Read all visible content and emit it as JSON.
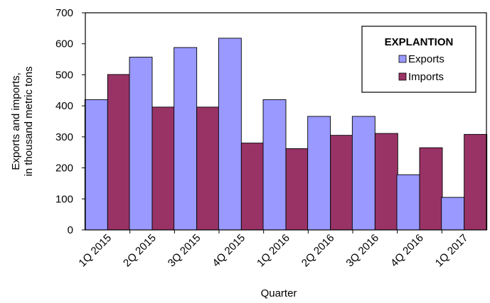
{
  "chart_data": {
    "type": "bar",
    "title": "",
    "xlabel": "Quarter",
    "ylabel_lines": [
      "Exports and imports,",
      "in thousand metric tons"
    ],
    "ylim": [
      0,
      700
    ],
    "yticks": [
      0,
      100,
      200,
      300,
      400,
      500,
      600,
      700
    ],
    "grid": false,
    "legend_position": "top-right",
    "legend_title": "EXPLANTION",
    "categories": [
      "1Q 2015",
      "2Q 2015",
      "3Q 2015",
      "4Q 2015",
      "1Q 2016",
      "2Q 2016",
      "3Q 2016",
      "4Q 2016",
      "1Q 2017"
    ],
    "series": [
      {
        "name": "Exports",
        "color": "#9999ff",
        "values": [
          420,
          557,
          588,
          618,
          420,
          366,
          366,
          178,
          105
        ]
      },
      {
        "name": "Imports",
        "color": "#993366",
        "values": [
          501,
          396,
          396,
          280,
          262,
          305,
          311,
          265,
          308
        ]
      }
    ]
  }
}
